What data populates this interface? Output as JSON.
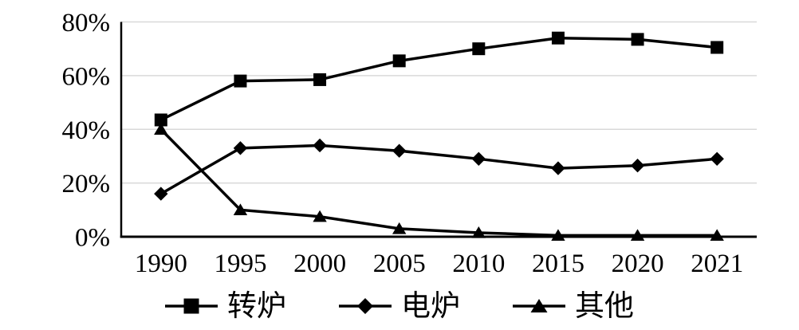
{
  "chart_data": {
    "type": "line",
    "title": "",
    "xlabel": "",
    "ylabel": "",
    "categories": [
      "1990",
      "1995",
      "2000",
      "2005",
      "2010",
      "2015",
      "2020",
      "2021"
    ],
    "series": [
      {
        "name": "转炉",
        "marker": "square",
        "values": [
          43.5,
          58,
          58.5,
          65.5,
          70,
          74,
          73.5,
          70.5
        ]
      },
      {
        "name": "电炉",
        "marker": "diamond",
        "values": [
          16,
          33,
          34,
          32,
          29,
          25.5,
          26.5,
          29
        ]
      },
      {
        "name": "其他",
        "marker": "triangle",
        "values": [
          40,
          10,
          7.5,
          3,
          1.5,
          0.5,
          0.5,
          0.5
        ]
      }
    ],
    "ylim": [
      0,
      80
    ],
    "ytick_step": 20,
    "ytick_labels": [
      "0%",
      "20%",
      "40%",
      "60%",
      "80%"
    ],
    "grid": true,
    "legend_position": "bottom",
    "series_color": "#000000",
    "axis_color": "#000000",
    "gridline_color": "#d9d9d9",
    "background": "#ffffff"
  }
}
